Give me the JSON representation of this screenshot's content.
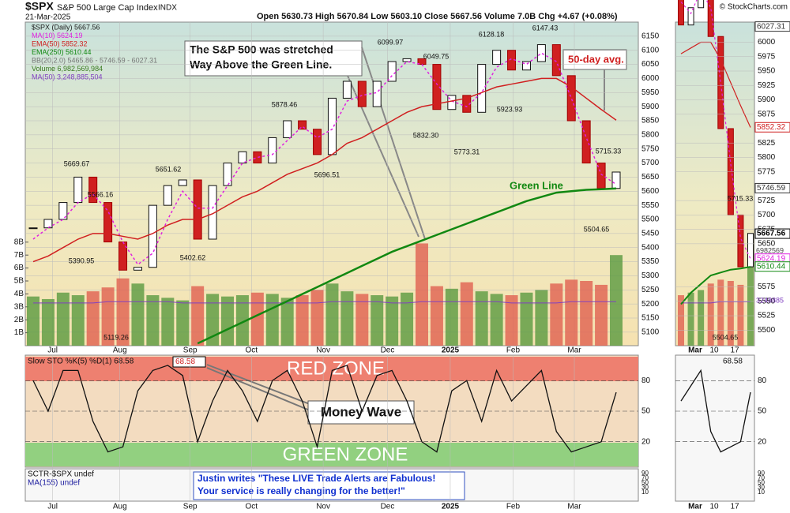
{
  "chart_data": {
    "type": "candlestick",
    "title": "$SPX",
    "subtitle": "S&P 500 Large Cap Index",
    "exchange": "INDX",
    "date": "21-Mar-2025",
    "quote": "Open 5630.73  High 5670.84  Low 5603.10  Close 5667.56  Volume 7.0B  Chg +4.67 (+0.08%)",
    "source": "© StockCharts.com",
    "bb_label": "BB(20,2.0) 5465.86 - 5746.59 - 6027.31",
    "xticks": [
      {
        "value": 1.3,
        "label": "Jul"
      },
      {
        "value": 5.8,
        "label": "Aug"
      },
      {
        "value": 10.5,
        "label": "Sep"
      },
      {
        "value": 14.6,
        "label": "Oct"
      },
      {
        "value": 19.4,
        "label": "Nov"
      },
      {
        "value": 23.7,
        "label": "Dec"
      },
      {
        "value": 27.9,
        "label": "2025"
      },
      {
        "value": 32.1,
        "label": "Feb"
      },
      {
        "value": 36.2,
        "label": "Mar"
      }
    ],
    "ylim": [
      5052,
      6200
    ],
    "yticks": [
      6150,
      6100,
      6050,
      6000,
      5950,
      5900,
      5850,
      5800,
      5750,
      5700,
      5650,
      5600,
      5550,
      5500,
      5450,
      5400,
      5350,
      5300,
      5250,
      5200,
      5150,
      5100
    ],
    "series": [
      {
        "name": "$SPX (Daily) 5667.56",
        "color": "#222222",
        "values": [
          5470,
          5500,
          5560,
          5650,
          5560,
          5420,
          5320,
          5330,
          5550,
          5620,
          5640,
          5430,
          5620,
          5700,
          5740,
          5700,
          5790,
          5850,
          5820,
          5730,
          5930,
          5990,
          5900,
          5990,
          6060,
          6070,
          6050,
          5890,
          5940,
          5880,
          6050,
          6100,
          6030,
          6060,
          6120,
          6010,
          5850,
          5700,
          5610,
          5668
        ]
      },
      {
        "name": "MA(10) 5624.19",
        "color": "#e020e0",
        "values": [
          5430,
          5470,
          5500,
          5560,
          5590,
          5530,
          5420,
          5340,
          5380,
          5500,
          5600,
          5540,
          5540,
          5620,
          5700,
          5720,
          5730,
          5780,
          5830,
          5790,
          5820,
          5920,
          5940,
          5950,
          6010,
          6060,
          6050,
          5980,
          5920,
          5900,
          5950,
          6040,
          6070,
          6050,
          6090,
          6060,
          5930,
          5790,
          5660,
          5624
        ]
      },
      {
        "name": "EMA(50) 5852.32",
        "color": "#d02020",
        "values": [
          5350,
          5370,
          5400,
          5430,
          5450,
          5450,
          5440,
          5430,
          5450,
          5480,
          5500,
          5500,
          5520,
          5550,
          5580,
          5600,
          5630,
          5660,
          5680,
          5700,
          5730,
          5770,
          5790,
          5820,
          5850,
          5880,
          5900,
          5910,
          5920,
          5930,
          5950,
          5970,
          5980,
          5990,
          6000,
          6000,
          5970,
          5930,
          5890,
          5852
        ]
      },
      {
        "name": "EMA(250) 5610.44",
        "color": "#118811",
        "values": [
          null,
          null,
          null,
          null,
          null,
          null,
          null,
          null,
          null,
          null,
          null,
          5060,
          5085,
          5110,
          5135,
          5160,
          5185,
          5210,
          5235,
          5260,
          5285,
          5310,
          5335,
          5360,
          5385,
          5405,
          5425,
          5445,
          5465,
          5485,
          5505,
          5525,
          5545,
          5565,
          5580,
          5595,
          5600,
          5605,
          5607,
          5610
        ]
      }
    ],
    "price_labels": [
      5669.67,
      5566.16,
      5390.95,
      5119.26,
      5651.62,
      5402.62,
      5878.46,
      5696.51,
      6099.97,
      6049.75,
      {
        "value": 5832.3,
        "label": "5832.30"
      },
      5773.31,
      6128.18,
      5923.93,
      6147.43,
      5715.33,
      5504.65
    ],
    "volume": {
      "name": "Volume 6,982,569,984",
      "color_up": "#5a9a40",
      "color_down": "#e06050",
      "values": [
        3.8,
        3.6,
        4.1,
        3.9,
        4.2,
        4.5,
        5.2,
        4.8,
        3.9,
        3.7,
        3.5,
        4.6,
        4.0,
        3.8,
        3.9,
        4.1,
        4.0,
        3.7,
        3.9,
        4.3,
        4.8,
        4.2,
        4.0,
        3.9,
        3.8,
        4.1,
        7.9,
        4.6,
        4.4,
        4.9,
        4.2,
        4.0,
        3.9,
        4.1,
        4.3,
        4.8,
        5.1,
        5.0,
        4.7,
        7.0
      ],
      "ylim": [
        0,
        25
      ],
      "yticks": [
        {
          "value": 1,
          "label": "1B"
        },
        {
          "value": 2,
          "label": "2B"
        },
        {
          "value": 3,
          "label": "3B"
        },
        {
          "value": 4,
          "label": "4B"
        },
        {
          "value": 5,
          "label": "5B"
        },
        {
          "value": 6,
          "label": "6B"
        },
        {
          "value": 7,
          "label": "7B"
        },
        {
          "value": 8,
          "label": "8B"
        }
      ]
    },
    "volume_ma": {
      "name": "MA(50) 3,248,885,504",
      "color": "#8040c0",
      "values": [
        3.3,
        3.3,
        3.3,
        3.3,
        3.3,
        3.4,
        3.4,
        3.4,
        3.4,
        3.4,
        3.3,
        3.3,
        3.3,
        3.3,
        3.3,
        3.3,
        3.3,
        3.3,
        3.3,
        3.3,
        3.4,
        3.4,
        3.4,
        3.4,
        3.3,
        3.3,
        3.4,
        3.4,
        3.4,
        3.4,
        3.4,
        3.4,
        3.3,
        3.3,
        3.3,
        3.3,
        3.4,
        3.4,
        3.4,
        3.4
      ]
    },
    "annotations": {
      "callout": [
        "The S&P 500 was stretched",
        "Way Above the Green Line."
      ],
      "ema50": "50-day avg.",
      "green_line": "Green Line"
    },
    "stochastic": {
      "title": "Slow STO %K(5) %D(1) 68.58",
      "last": 68.58,
      "color": "#111111",
      "values": [
        80,
        50,
        90,
        90,
        40,
        10,
        15,
        70,
        90,
        95,
        85,
        20,
        60,
        90,
        70,
        40,
        80,
        90,
        60,
        15,
        90,
        95,
        50,
        85,
        90,
        60,
        20,
        10,
        70,
        80,
        40,
        90,
        60,
        75,
        90,
        30,
        10,
        15,
        20,
        68.58
      ],
      "ylim": [
        -5,
        105
      ],
      "yticks": [
        80,
        50,
        20
      ],
      "red_zone": "RED ZONE",
      "green_zone": "GREEN ZONE",
      "note": "Money Wave"
    },
    "sctr": {
      "labels": [
        "SCTR-$SPX undef",
        "MA(155) undef"
      ],
      "yticks": [
        90,
        70,
        50,
        30,
        10
      ],
      "quote": [
        "Justin writes \"These LIVE Trade Alerts are Fabulous!",
        "Your service is really changing for the better!\""
      ]
    },
    "zoom": {
      "xlabels": [
        "Mar",
        "10",
        "17"
      ],
      "ylim": [
        5473,
        6035
      ],
      "yticks": [
        6000,
        5975,
        5950,
        5925,
        5900,
        5875,
        5825,
        5800,
        5775,
        5725,
        5700,
        5675,
        5650,
        5575,
        5550,
        5525,
        5500
      ],
      "tags": [
        6027.31,
        5852.32,
        5746.59,
        5667.56,
        5624.19,
        5610.44
      ],
      "volume_tags": [
        6982569,
        3248885
      ],
      "price_labels": [
        5715.33,
        5504.65
      ]
    }
  }
}
